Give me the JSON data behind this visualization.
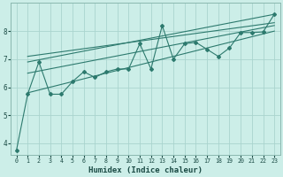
{
  "xlabel": "Humidex (Indice chaleur)",
  "bg_color": "#cceee8",
  "grid_color": "#aad4ce",
  "line_color": "#2d7a6e",
  "spine_color": "#8ab8b0",
  "xlim": [
    -0.5,
    23.5
  ],
  "ylim": [
    3.6,
    9.0
  ],
  "xticks": [
    0,
    1,
    2,
    3,
    4,
    5,
    6,
    7,
    8,
    9,
    10,
    11,
    12,
    13,
    14,
    15,
    16,
    17,
    18,
    19,
    20,
    21,
    22,
    23
  ],
  "yticks": [
    4,
    5,
    6,
    7,
    8
  ],
  "main_data_x": [
    0,
    1,
    2,
    3,
    4,
    5,
    6,
    7,
    8,
    9,
    10,
    11,
    12,
    13,
    14,
    15,
    16,
    17,
    18,
    19,
    20,
    21,
    22,
    23
  ],
  "main_data_y": [
    3.75,
    5.75,
    6.9,
    5.75,
    5.75,
    6.2,
    6.55,
    6.35,
    6.55,
    6.65,
    6.65,
    7.55,
    6.65,
    8.2,
    7.0,
    7.55,
    7.6,
    7.35,
    7.1,
    7.4,
    7.95,
    7.95,
    7.97,
    8.6
  ],
  "upper_line_x": [
    1,
    23
  ],
  "upper_line_y": [
    6.9,
    8.6
  ],
  "lower_line_x": [
    1,
    23
  ],
  "lower_line_y": [
    5.8,
    8.0
  ],
  "mid_upper_line_x": [
    1,
    23
  ],
  "mid_upper_line_y": [
    7.1,
    8.3
  ],
  "mid_lower_line_x": [
    1,
    23
  ],
  "mid_lower_line_y": [
    6.5,
    8.2
  ]
}
